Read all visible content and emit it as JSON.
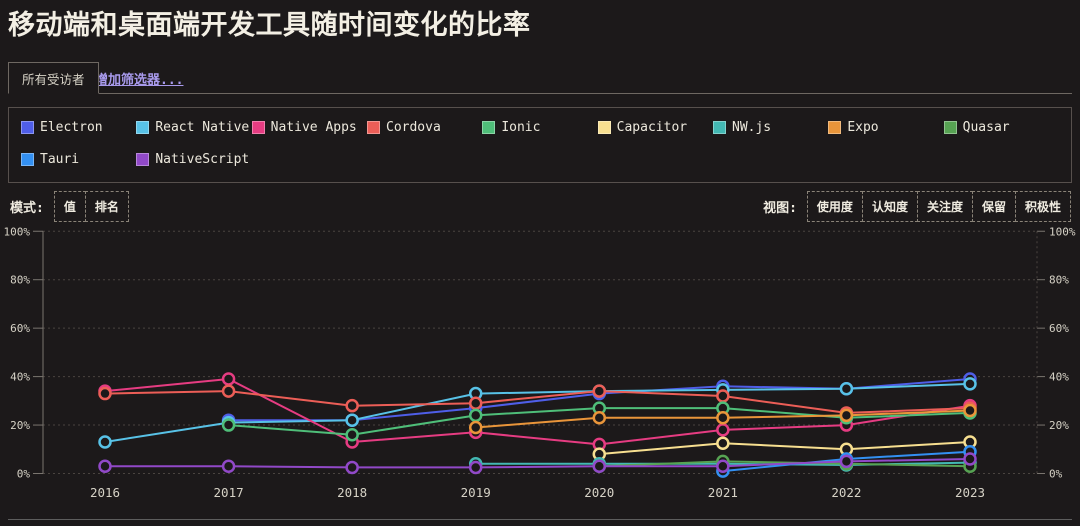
{
  "page": {
    "title": "移动端和桌面端开发工具随时间变化的比率"
  },
  "tabs": {
    "all_respondents": "所有受访者",
    "add_filter": "增加筛选器..."
  },
  "controls": {
    "mode_label": "模式:",
    "mode_buttons": [
      "值",
      "排名"
    ],
    "view_label": "视图:",
    "view_buttons": [
      "使用度",
      "认知度",
      "关注度",
      "保留",
      "积极性"
    ]
  },
  "colors": {
    "background": "#1c191a",
    "accent_link": "#a89aec",
    "grid": "#4a4440",
    "axis": "#7a756f",
    "axis_text": "#d6d2c6"
  },
  "chart_data": {
    "type": "line",
    "title": "移动端和桌面端开发工具随时间变化的比率",
    "x": [
      "2016",
      "2017",
      "2018",
      "2019",
      "2020",
      "2021",
      "2022",
      "2023"
    ],
    "unit": "%",
    "ylim": [
      0,
      100
    ],
    "yticks": [
      0,
      20,
      40,
      60,
      80,
      100
    ],
    "grid": true,
    "legend_position": "top",
    "series": [
      {
        "name": "Electron",
        "color": "#4f5ee8",
        "values": [
          null,
          22,
          22,
          27,
          33,
          36,
          35,
          39
        ]
      },
      {
        "name": "React Native",
        "color": "#58c2e7",
        "values": [
          13,
          21,
          22,
          33,
          34,
          34.5,
          35,
          37
        ]
      },
      {
        "name": "Native Apps",
        "color": "#e63c82",
        "values": [
          34,
          39,
          13,
          17,
          12,
          18,
          20,
          28
        ]
      },
      {
        "name": "Cordova",
        "color": "#ec5e57",
        "values": [
          33,
          34,
          28,
          29,
          34,
          32,
          25,
          27
        ]
      },
      {
        "name": "Ionic",
        "color": "#4fbe79",
        "values": [
          null,
          20,
          16,
          24,
          27,
          27,
          23,
          25
        ]
      },
      {
        "name": "Capacitor",
        "color": "#f7df90",
        "values": [
          null,
          null,
          null,
          null,
          8,
          12.5,
          10,
          13
        ]
      },
      {
        "name": "NW.js",
        "color": "#43b8b3",
        "values": [
          null,
          null,
          null,
          4,
          4,
          4,
          3.5,
          4.5
        ]
      },
      {
        "name": "Expo",
        "color": "#e9953a",
        "values": [
          null,
          null,
          null,
          19,
          23,
          23,
          24,
          26
        ]
      },
      {
        "name": "Quasar",
        "color": "#57a353",
        "values": [
          null,
          null,
          null,
          null,
          3,
          5,
          4,
          3
        ]
      },
      {
        "name": "Tauri",
        "color": "#3390f2",
        "values": [
          null,
          null,
          null,
          null,
          null,
          1,
          6,
          9
        ]
      },
      {
        "name": "NativeScript",
        "color": "#9149c8",
        "values": [
          3,
          3,
          2.5,
          2.5,
          3,
          3,
          5,
          6
        ]
      }
    ]
  }
}
